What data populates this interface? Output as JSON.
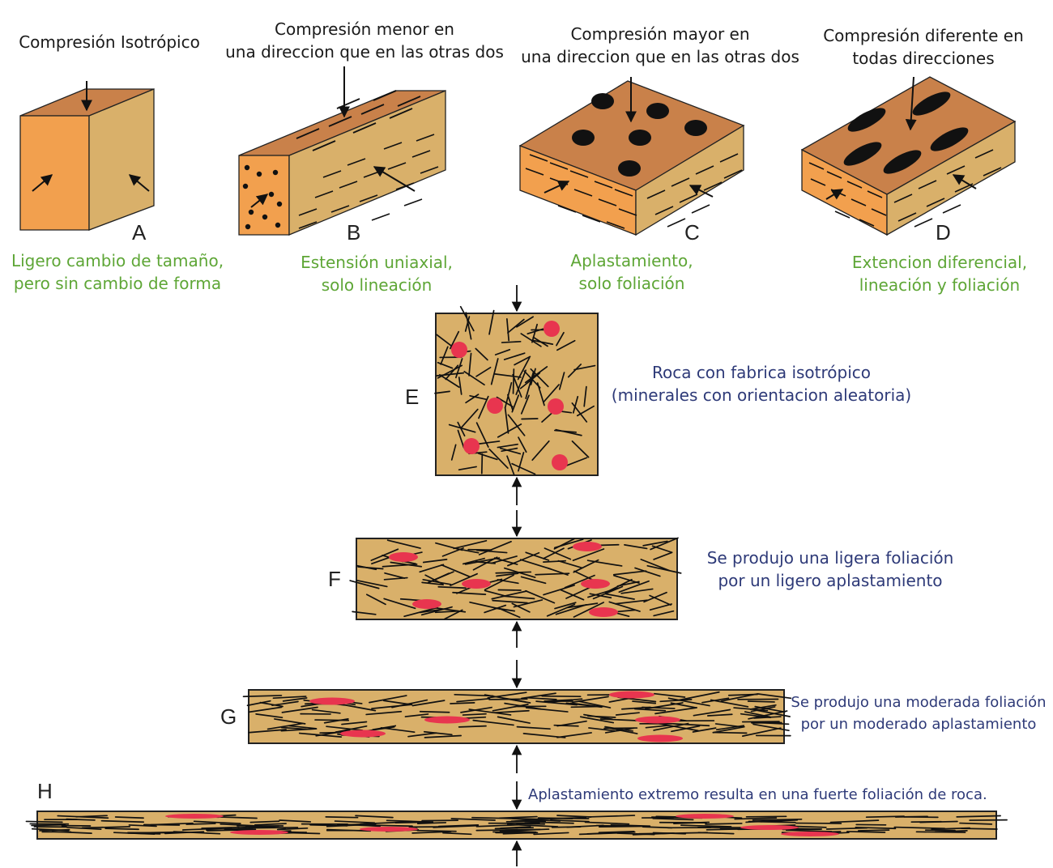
{
  "colors": {
    "top_face": "#c9814a",
    "front_face_orange": "#f2a04e",
    "side_face_tan": "#d9b06a",
    "rock_fill": "#d9b06a",
    "mineral_red": "#e8354f",
    "ink": "#111111",
    "green_text": "#5ea636",
    "blue_text": "#2e3a78"
  },
  "blocks": [
    {
      "letter": "A",
      "title": [
        "Compresión Isotrópico"
      ],
      "caption": [
        "Ligero cambio de tamaño,",
        "pero sin cambio de forma"
      ]
    },
    {
      "letter": "B",
      "title": [
        "Compresión menor en",
        "una direccion que en las otras dos"
      ],
      "caption": [
        "Estensión uniaxial,",
        "solo lineación"
      ]
    },
    {
      "letter": "C",
      "title": [
        "Compresión mayor en",
        "una direccion que en las otras dos"
      ],
      "caption": [
        "Aplastamiento,",
        "solo foliación"
      ]
    },
    {
      "letter": "D",
      "title": [
        "Compresión diferente en",
        "todas  direcciones"
      ],
      "caption": [
        "Extencion diferencial,",
        "lineación y foliación"
      ]
    }
  ],
  "stages": [
    {
      "letter": "E",
      "text": [
        "Roca con fabrica isotrópico",
        "(minerales con orientacion aleatoria)"
      ]
    },
    {
      "letter": "F",
      "text": [
        "Se produjo una ligera foliación",
        "por un ligero aplastamiento"
      ]
    },
    {
      "letter": "G",
      "text": [
        "Se produjo una moderada foliación",
        "por un moderado  aplastamiento"
      ]
    },
    {
      "letter": "H",
      "text": [
        "Aplastamiento extremo resulta  en una fuerte foliación de roca."
      ]
    }
  ]
}
